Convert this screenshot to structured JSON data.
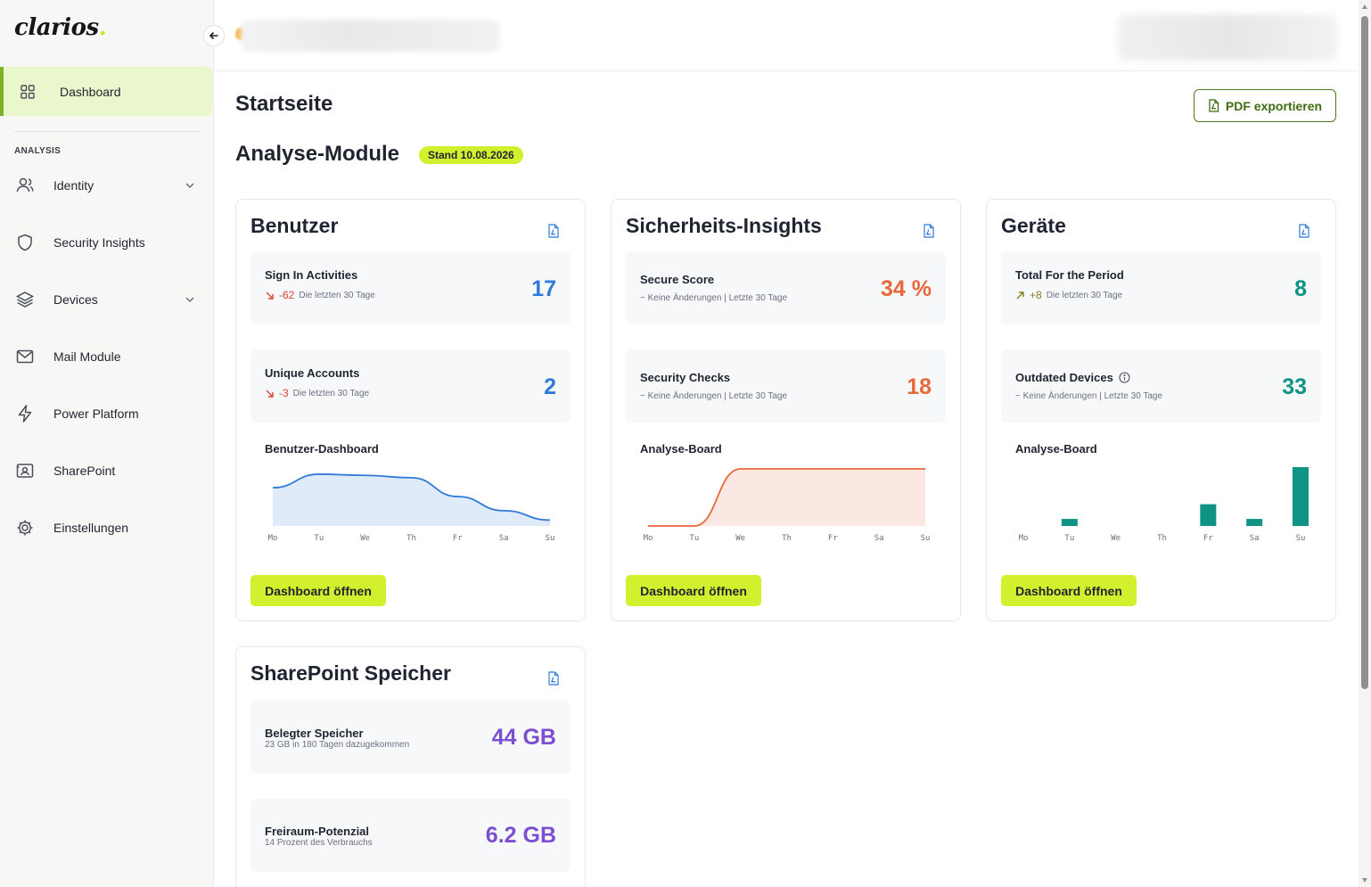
{
  "app": {
    "logo": "clarios",
    "logo_dot": "."
  },
  "sidebar": {
    "active_item": {
      "label": "Dashboard",
      "icon": "grid-icon"
    },
    "section_label": "ANALYSIS",
    "items": [
      {
        "label": "Identity",
        "icon": "users-icon",
        "has_chevron": true
      },
      {
        "label": "Security Insights",
        "icon": "shield-icon",
        "has_chevron": false
      },
      {
        "label": "Devices",
        "icon": "layers-icon",
        "has_chevron": true
      },
      {
        "label": "Mail Module",
        "icon": "mail-icon",
        "has_chevron": false
      },
      {
        "label": "Power Platform",
        "icon": "lightning-icon",
        "has_chevron": false
      },
      {
        "label": "SharePoint",
        "icon": "sharepoint-icon",
        "has_chevron": false
      },
      {
        "label": "Einstellungen",
        "icon": "gear-icon",
        "has_chevron": false
      }
    ]
  },
  "header": {
    "page_title": "Startseite",
    "export_label": "PDF exportieren"
  },
  "modules": {
    "title": "Analyse-Module",
    "badge": "Stand 10.08.2026"
  },
  "cards": {
    "benutzer": {
      "title": "Benutzer",
      "m1": {
        "label": "Sign In Activities",
        "delta": "-62",
        "period": "Die letzten 30 Tage",
        "value": "17"
      },
      "m2": {
        "label": "Unique Accounts",
        "delta": "-3",
        "period": "Die letzten 30 Tage",
        "value": "2"
      },
      "chart_title": "Benutzer-Dashboard",
      "button": "Dashboard öffnen"
    },
    "security": {
      "title": "Sicherheits-Insights",
      "m1": {
        "label": "Secure Score",
        "sub": "~ Keine Änderungen | Letzte 30 Tage",
        "value": "34 %"
      },
      "m2": {
        "label": "Security Checks",
        "sub": "~ Keine Änderungen | Letzte 30 Tage",
        "value": "18"
      },
      "chart_title": "Analyse-Board",
      "button": "Dashboard öffnen"
    },
    "geraete": {
      "title": "Geräte",
      "m1": {
        "label": "Total For the Period",
        "delta": "+8",
        "period": "Die letzten 30 Tage",
        "value": "8"
      },
      "m2": {
        "label": "Outdated Devices",
        "sub": "~ Keine Änderungen | Letzte 30 Tage",
        "value": "33"
      },
      "chart_title": "Analyse-Board",
      "button": "Dashboard öffnen"
    },
    "sharepoint": {
      "title": "SharePoint Speicher",
      "m1": {
        "label": "Belegter Speicher",
        "sub": "23 GB in 180 Tagen dazugekommen",
        "value": "44 GB"
      },
      "m2": {
        "label": "Freiraum-Potenzial",
        "sub": "14 Prozent des Verbrauchs",
        "value": "6.2 GB"
      }
    }
  },
  "colors": {
    "accent_lime": "#d3f02e",
    "active_nav_bg": "#eaf7cd",
    "blue": "#2f7bd9",
    "orange": "#e8683c",
    "teal": "#0f9384",
    "purple": "#7b4fd0",
    "negative": "#d9452f",
    "positive": "#8a7a1a"
  },
  "chart_data": [
    {
      "type": "area",
      "name": "Benutzer-Dashboard",
      "categories": [
        "Mo",
        "Tu",
        "We",
        "Th",
        "Fr",
        "Sa",
        "Su"
      ],
      "values": [
        0.65,
        0.88,
        0.86,
        0.82,
        0.5,
        0.26,
        0.1
      ],
      "color": "#2f7bd9"
    },
    {
      "type": "area",
      "name": "Analyse-Board",
      "categories": [
        "Mo",
        "Tu",
        "We",
        "Th",
        "Fr",
        "Sa",
        "Su"
      ],
      "values": [
        0,
        0,
        0.97,
        0.97,
        0.97,
        0.97,
        0.97
      ],
      "color": "#e8683c"
    },
    {
      "type": "bar",
      "name": "Analyse-Board",
      "categories": [
        "Mo",
        "Tu",
        "We",
        "Th",
        "Fr",
        "Sa",
        "Su"
      ],
      "values": [
        0,
        0.12,
        0,
        0,
        0.37,
        0.12,
        1.0
      ],
      "color": "#0f9384"
    }
  ]
}
